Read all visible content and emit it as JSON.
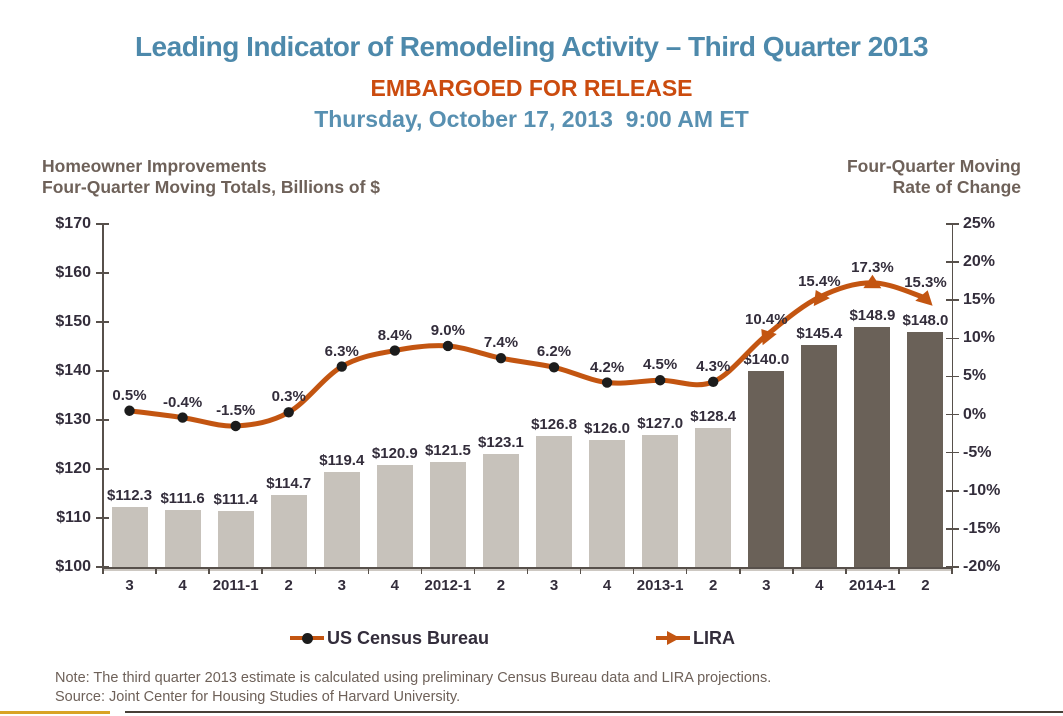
{
  "header": {
    "title": "Leading Indicator of Remodeling Activity – Third Quarter 2013",
    "embargo": "EMBARGOED FOR RELEASE",
    "datetime": "Thursday, October 17, 2013  9:00 AM ET"
  },
  "axis_headers": {
    "left_line1": "Homeowner Improvements",
    "left_line2": "Four-Quarter Moving Totals, Billions of $",
    "right_line1": "Four-Quarter Moving",
    "right_line2": "Rate of Change"
  },
  "chart_data": {
    "type": "bar+line",
    "title": "Leading Indicator of Remodeling Activity – Third Quarter 2013",
    "categories": [
      "3",
      "4",
      "2011-1",
      "2",
      "3",
      "4",
      "2012-1",
      "2",
      "3",
      "4",
      "2013-1",
      "2",
      "3",
      "4",
      "2014-1",
      "2"
    ],
    "bar_series": {
      "name": "Homeowner Improvements, Four-Quarter Moving Totals, Billions of $",
      "source_split_note": "bars from index 12 onward are LIRA projections (dark)",
      "values": [
        112.3,
        111.6,
        111.4,
        114.7,
        119.4,
        120.9,
        121.5,
        123.1,
        126.8,
        126.0,
        127.0,
        128.4,
        140.0,
        145.4,
        148.9,
        148.0
      ],
      "labels": [
        "$112.3",
        "$111.6",
        "$111.4",
        "$114.7",
        "$119.4",
        "$120.9",
        "$121.5",
        "$123.1",
        "$126.8",
        "$126.0",
        "$127.0",
        "$128.4",
        "$140.0",
        "$145.4",
        "$148.9",
        "$148.0"
      ],
      "projected_from_index": 12,
      "color": "#c7c2bb",
      "projected_color": "#6a6158"
    },
    "line_series": {
      "name": "Four-Quarter Moving Rate of Change",
      "values": [
        0.5,
        -0.4,
        -1.5,
        0.3,
        6.3,
        8.4,
        9.0,
        7.4,
        6.2,
        4.2,
        4.5,
        4.3,
        10.4,
        15.4,
        17.3,
        15.3
      ],
      "labels": [
        "0.5%",
        "-0.4%",
        "-1.5%",
        "0.3%",
        "6.3%",
        "8.4%",
        "9.0%",
        "7.4%",
        "6.2%",
        "4.2%",
        "4.5%",
        "4.3%",
        "10.4%",
        "15.4%",
        "17.3%",
        "15.3%"
      ],
      "projected_from_index": 12,
      "color": "#c35511",
      "marker_color": "#1c1c1c"
    },
    "left_axis": {
      "tick_labels": [
        "$170",
        "$160",
        "$150",
        "$140",
        "$130",
        "$120",
        "$110",
        "$100"
      ],
      "min": 100,
      "max": 170
    },
    "right_axis": {
      "tick_labels": [
        "25%",
        "20%",
        "15%",
        "10%",
        "5%",
        "0%",
        "-5%",
        "-10%",
        "-15%",
        "-20%"
      ],
      "min": -20,
      "max": 25
    },
    "legend": [
      {
        "label": "US Census Bureau",
        "marker": "black-circle-on-orange-line"
      },
      {
        "label": "LIRA",
        "marker": "orange-triangle-on-orange-line"
      }
    ],
    "grid": false,
    "legend_position": "bottom"
  },
  "footer": {
    "note": "Note: The third quarter 2013 estimate is calculated using preliminary Census Bureau data and LIRA projections.",
    "source": "Source: Joint Center for Housing Studies of Harvard University."
  },
  "colors": {
    "title_teal": "#4d89ab",
    "date_teal": "#5890b1",
    "embargo_orange": "#cb4b0e",
    "line_orange": "#c35511",
    "bar_light": "#c7c2bb",
    "bar_dark": "#6a6158",
    "text_dark": "#332d3b",
    "text_taupe": "#6e6159",
    "footer_gold": "#d9a426",
    "footer_dark": "#474038"
  }
}
